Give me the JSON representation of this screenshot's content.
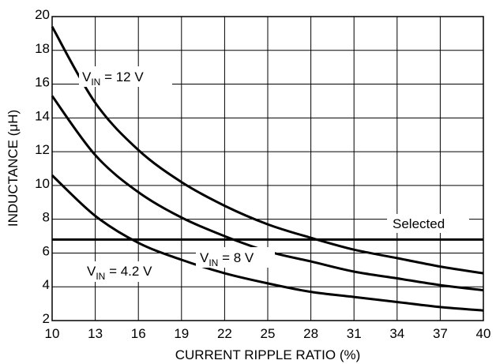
{
  "chart_data": {
    "type": "line",
    "title": "",
    "xlabel": "CURRENT RIPPLE RATIO (%)",
    "ylabel": "INDUCTANCE (μH)",
    "xlim": [
      10,
      40
    ],
    "ylim": [
      2,
      20
    ],
    "x_ticks": [
      "10",
      "13",
      "16",
      "19",
      "22",
      "25",
      "28",
      "31",
      "34",
      "37",
      "40"
    ],
    "y_ticks": [
      "2",
      "4",
      "6",
      "8",
      "10",
      "12",
      "14",
      "16",
      "18",
      "20"
    ],
    "grid": true,
    "x": [
      10,
      13,
      16,
      19,
      22,
      25,
      28,
      31,
      34,
      37,
      40
    ],
    "series": [
      {
        "name": "VIN = 12 V",
        "values": [
          19.4,
          14.9,
          12.1,
          10.2,
          8.8,
          7.7,
          6.9,
          6.2,
          5.7,
          5.2,
          4.8
        ]
      },
      {
        "name": "VIN = 8 V",
        "values": [
          15.3,
          11.8,
          9.6,
          8.1,
          7.0,
          6.1,
          5.5,
          4.9,
          4.5,
          4.1,
          3.8
        ]
      },
      {
        "name": "VIN = 4.2 V",
        "values": [
          10.6,
          8.2,
          6.6,
          5.6,
          4.8,
          4.2,
          3.7,
          3.4,
          3.1,
          2.8,
          2.6
        ]
      }
    ],
    "reference_line": {
      "label": "Selected",
      "y": 6.8
    },
    "annotations": {
      "vin12": {
        "prefix": "V",
        "sub": "IN",
        "suffix": " = 12 V"
      },
      "vin8": {
        "prefix": "V",
        "sub": "IN",
        "suffix": " = 8 V"
      },
      "vin42": {
        "prefix": "V",
        "sub": "IN",
        "suffix": " = 4.2 V"
      },
      "selected": "Selected"
    }
  }
}
